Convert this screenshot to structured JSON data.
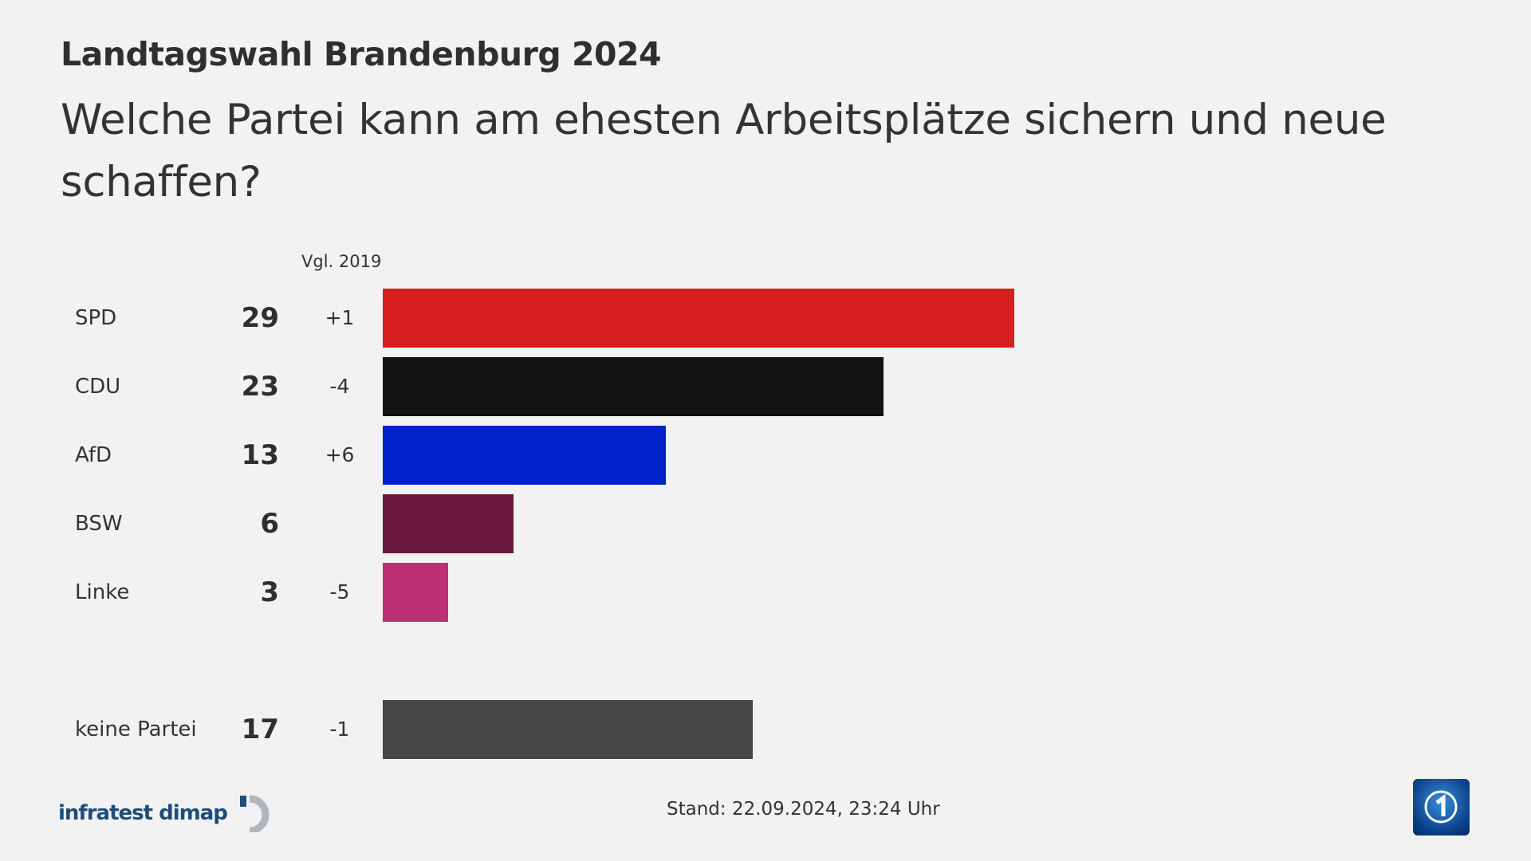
{
  "header": {
    "supertitle": "Landtagswahl Brandenburg 2024",
    "title": "Welche Partei kann am ehesten Arbeitsplätze sichern und neue schaffen?"
  },
  "chart_data": {
    "type": "bar",
    "orientation": "horizontal",
    "comparison_header": "Vgl. 2019",
    "categories": [
      "SPD",
      "CDU",
      "AfD",
      "BSW",
      "Linke",
      "keine Partei"
    ],
    "values": [
      29,
      23,
      13,
      6,
      3,
      17
    ],
    "value_labels": [
      "29",
      "23",
      "13",
      "6",
      "3",
      "17"
    ],
    "changes": [
      "+1",
      "-4",
      "+6",
      "",
      "-5",
      "-1"
    ],
    "colors": [
      "#d71f1f",
      "#121212",
      "#0021c8",
      "#6b1a3f",
      "#be3075",
      "#474747"
    ],
    "grid": false
  },
  "footer": {
    "source_logo": "infratest dimap",
    "stand": "Stand:  22.09.2024, 23:24 Uhr",
    "broadcaster_logo": "ARD Das Erste"
  }
}
